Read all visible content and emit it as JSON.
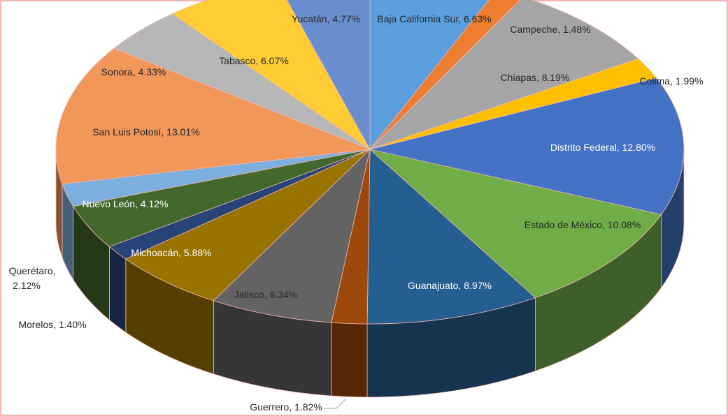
{
  "chart_data": {
    "type": "pie3d",
    "categories": [
      "Baja California Sur",
      "Campeche",
      "Chiapas",
      "Colima",
      "Distrito Federal",
      "Estado de México",
      "Guanajuato",
      "Guerrero",
      "Jalisco",
      "Michoacán",
      "Morelos",
      "Nuevo León",
      "Querétaro",
      "San Luis Potosí",
      "Sonora",
      "Tabasco",
      "Yucatán"
    ],
    "values": [
      6.63,
      1.48,
      8.19,
      1.99,
      12.8,
      10.08,
      8.97,
      1.82,
      6.34,
      5.88,
      1.4,
      4.12,
      2.12,
      13.01,
      4.33,
      6.07,
      4.77
    ],
    "value_labels": [
      "6.63%",
      "1.48%",
      "8.19%",
      "1.99%",
      "12.80%",
      "10.08%",
      "8.97%",
      "1.82%",
      "6.34%",
      "5.88%",
      "1.40%",
      "4.12%",
      "2.12%",
      "13.01%",
      "4.33%",
      "6.07%",
      "4.77%"
    ],
    "label_separator": ", ",
    "colors": [
      "#5b9fdf",
      "#ed7d31",
      "#a5a5a5",
      "#ffc000",
      "#4472c4",
      "#70ad47",
      "#255e91",
      "#9e480e",
      "#636363",
      "#997300",
      "#264478",
      "#43682b",
      "#7cafdd",
      "#f1975a",
      "#b7b7b7",
      "#ffcd33",
      "#698ed0"
    ]
  }
}
